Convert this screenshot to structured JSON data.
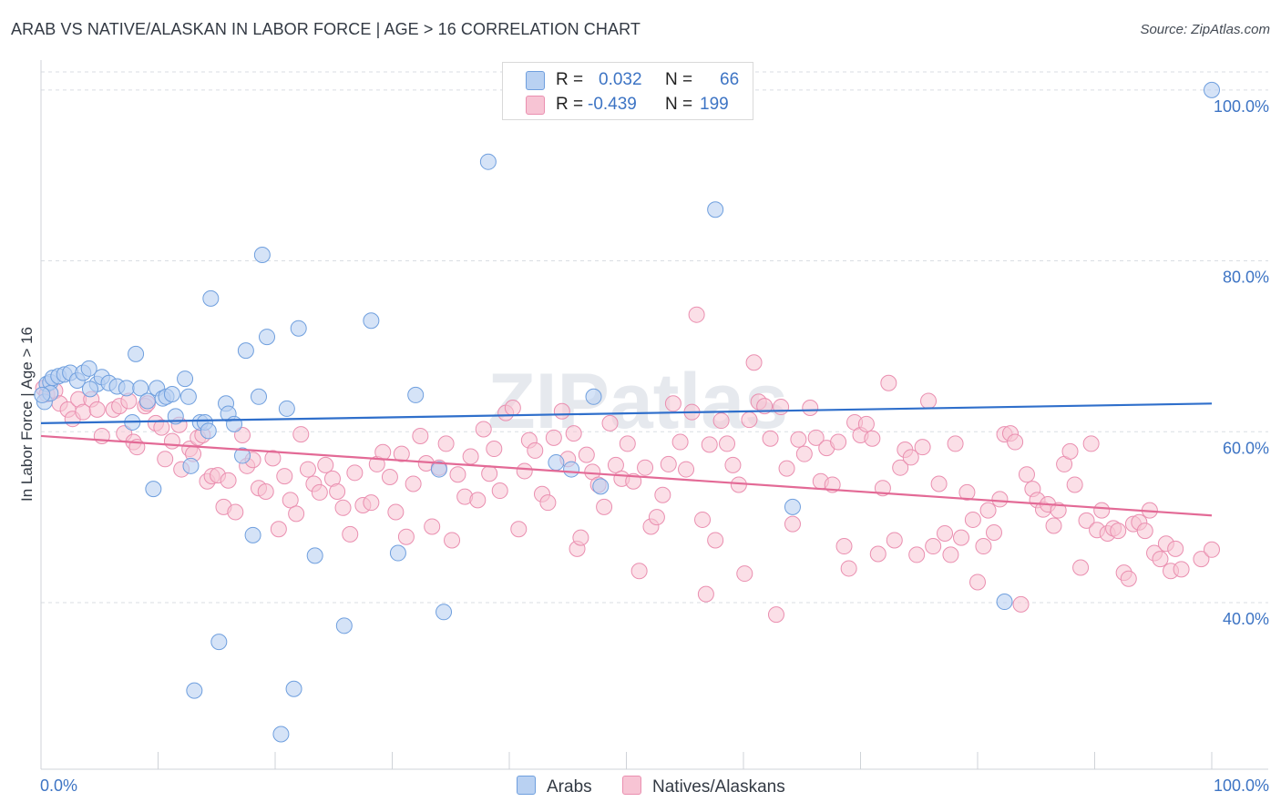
{
  "title": "ARAB VS NATIVE/ALASKAN IN LABOR FORCE | AGE > 16 CORRELATION CHART",
  "source": "Source: ZipAtlas.com",
  "watermark": "ZIPatlas",
  "legend": {
    "rows": [
      {
        "r_label": "R =",
        "r_value": "0.032",
        "n_label": "N =",
        "n_value": "66"
      },
      {
        "r_label": "R =",
        "r_value": "-0.439",
        "n_label": "N =",
        "n_value": "199"
      }
    ]
  },
  "bottom_legend": {
    "arabs": "Arabs",
    "natives": "Natives/Alaskans"
  },
  "colors": {
    "arab_fill": "#b9d1f2",
    "arab_stroke": "#6f9fde",
    "arab_line": "#2f6fcb",
    "native_fill": "#f7c4d4",
    "native_stroke": "#ea8fb0",
    "native_line": "#e36a96",
    "grid": "#d9dde3",
    "tick_label": "#3d74c4"
  },
  "chart_data": {
    "type": "scatter",
    "title": "ARAB VS NATIVE/ALASKAN IN LABOR FORCE | AGE > 16 CORRELATION CHART",
    "xlabel": "",
    "ylabel": "In Labor Force | Age > 16",
    "xlim": [
      0,
      100
    ],
    "ylim": [
      20.5,
      103.5
    ],
    "x_tick_labels": [
      "0.0%",
      "100.0%"
    ],
    "y_ticks": [
      40,
      60,
      80,
      100
    ],
    "y_tick_labels": [
      "40.0%",
      "60.0%",
      "80.0%",
      "100.0%"
    ],
    "series": [
      {
        "name": "Arabs",
        "r": 0.032,
        "n": 66,
        "trend": {
          "x": [
            0,
            100
          ],
          "y": [
            61.0,
            63.3
          ]
        },
        "points": [
          [
            0.3,
            63.5
          ],
          [
            0.5,
            65.6
          ],
          [
            0.8,
            65.8
          ],
          [
            1.0,
            66.3
          ],
          [
            1.5,
            66.5
          ],
          [
            2.0,
            66.7
          ],
          [
            2.5,
            66.9
          ],
          [
            3.1,
            66.0
          ],
          [
            3.6,
            66.9
          ],
          [
            4.1,
            67.4
          ],
          [
            4.8,
            65.6
          ],
          [
            5.2,
            66.4
          ],
          [
            5.8,
            65.7
          ],
          [
            6.5,
            65.3
          ],
          [
            7.3,
            65.1
          ],
          [
            7.8,
            61.1
          ],
          [
            8.1,
            69.1
          ],
          [
            8.5,
            65.1
          ],
          [
            9.1,
            63.6
          ],
          [
            9.6,
            53.3
          ],
          [
            9.9,
            65.1
          ],
          [
            10.4,
            63.9
          ],
          [
            10.7,
            64.1
          ],
          [
            11.2,
            64.4
          ],
          [
            11.5,
            61.8
          ],
          [
            12.3,
            66.2
          ],
          [
            12.6,
            64.1
          ],
          [
            12.8,
            56.0
          ],
          [
            13.1,
            29.7
          ],
          [
            13.6,
            61.1
          ],
          [
            14.0,
            61.1
          ],
          [
            14.3,
            60.1
          ],
          [
            14.5,
            75.6
          ],
          [
            15.2,
            35.4
          ],
          [
            15.8,
            63.3
          ],
          [
            16.0,
            62.1
          ],
          [
            16.5,
            60.9
          ],
          [
            17.2,
            57.2
          ],
          [
            17.5,
            69.5
          ],
          [
            18.1,
            47.9
          ],
          [
            18.6,
            64.1
          ],
          [
            18.9,
            80.7
          ],
          [
            19.3,
            71.1
          ],
          [
            20.5,
            24.6
          ],
          [
            21.0,
            62.7
          ],
          [
            21.6,
            29.9
          ],
          [
            22.0,
            72.1
          ],
          [
            23.4,
            45.5
          ],
          [
            25.9,
            37.3
          ],
          [
            28.2,
            73.0
          ],
          [
            30.5,
            45.8
          ],
          [
            32.0,
            64.3
          ],
          [
            34.0,
            55.6
          ],
          [
            34.4,
            38.9
          ],
          [
            38.2,
            91.6
          ],
          [
            44.0,
            56.4
          ],
          [
            45.3,
            55.6
          ],
          [
            47.2,
            64.1
          ],
          [
            47.8,
            53.6
          ],
          [
            57.6,
            86.0
          ],
          [
            64.2,
            51.2
          ],
          [
            82.3,
            40.1
          ],
          [
            100.0,
            100.0
          ],
          [
            0.8,
            64.5
          ],
          [
            4.2,
            65.0
          ],
          [
            0.1,
            64.3
          ]
        ]
      },
      {
        "name": "Natives/Alaskans",
        "r": -0.439,
        "n": 199,
        "trend": {
          "x": [
            0,
            100
          ],
          "y": [
            59.5,
            50.2
          ]
        },
        "points": [
          [
            0.2,
            65.1
          ],
          [
            0.5,
            64.4
          ],
          [
            1.2,
            64.8
          ],
          [
            1.6,
            63.3
          ],
          [
            2.3,
            62.6
          ],
          [
            2.7,
            61.5
          ],
          [
            3.2,
            63.8
          ],
          [
            3.6,
            62.3
          ],
          [
            4.3,
            63.8
          ],
          [
            4.8,
            62.6
          ],
          [
            5.2,
            59.5
          ],
          [
            6.2,
            62.6
          ],
          [
            6.7,
            63.0
          ],
          [
            7.1,
            59.8
          ],
          [
            7.5,
            63.6
          ],
          [
            7.9,
            58.8
          ],
          [
            8.2,
            58.2
          ],
          [
            8.9,
            63.0
          ],
          [
            9.1,
            63.3
          ],
          [
            9.8,
            61.0
          ],
          [
            10.3,
            60.5
          ],
          [
            10.6,
            56.8
          ],
          [
            11.2,
            58.9
          ],
          [
            11.8,
            60.8
          ],
          [
            12.0,
            55.6
          ],
          [
            12.7,
            58.0
          ],
          [
            13.0,
            57.4
          ],
          [
            13.4,
            59.3
          ],
          [
            13.8,
            59.6
          ],
          [
            14.2,
            54.2
          ],
          [
            14.6,
            54.8
          ],
          [
            15.1,
            54.9
          ],
          [
            15.6,
            51.2
          ],
          [
            16.0,
            54.3
          ],
          [
            16.6,
            50.6
          ],
          [
            17.2,
            59.6
          ],
          [
            17.6,
            56.0
          ],
          [
            18.1,
            56.7
          ],
          [
            18.6,
            53.4
          ],
          [
            19.2,
            53.0
          ],
          [
            19.8,
            56.9
          ],
          [
            20.3,
            48.6
          ],
          [
            20.8,
            54.8
          ],
          [
            21.3,
            52.0
          ],
          [
            21.8,
            50.4
          ],
          [
            22.2,
            59.7
          ],
          [
            22.8,
            55.6
          ],
          [
            23.3,
            53.9
          ],
          [
            23.8,
            52.9
          ],
          [
            24.3,
            56.1
          ],
          [
            24.9,
            54.5
          ],
          [
            25.3,
            53.0
          ],
          [
            25.8,
            51.1
          ],
          [
            26.4,
            48.0
          ],
          [
            26.8,
            55.2
          ],
          [
            27.5,
            51.4
          ],
          [
            28.2,
            51.7
          ],
          [
            28.7,
            56.2
          ],
          [
            29.2,
            57.6
          ],
          [
            29.8,
            54.7
          ],
          [
            30.3,
            50.6
          ],
          [
            30.8,
            57.4
          ],
          [
            31.2,
            47.7
          ],
          [
            31.8,
            53.9
          ],
          [
            32.4,
            59.5
          ],
          [
            32.9,
            56.3
          ],
          [
            33.4,
            48.9
          ],
          [
            34.0,
            55.8
          ],
          [
            34.6,
            58.6
          ],
          [
            35.1,
            47.3
          ],
          [
            35.6,
            55.0
          ],
          [
            36.2,
            52.4
          ],
          [
            36.7,
            57.1
          ],
          [
            37.3,
            52.0
          ],
          [
            37.8,
            60.3
          ],
          [
            38.3,
            55.1
          ],
          [
            38.7,
            58.0
          ],
          [
            39.2,
            53.1
          ],
          [
            39.7,
            62.2
          ],
          [
            40.3,
            62.8
          ],
          [
            40.8,
            48.6
          ],
          [
            41.3,
            55.4
          ],
          [
            41.7,
            59.0
          ],
          [
            42.2,
            57.8
          ],
          [
            42.8,
            52.7
          ],
          [
            43.3,
            51.7
          ],
          [
            43.8,
            59.3
          ],
          [
            44.5,
            62.4
          ],
          [
            45.0,
            56.8
          ],
          [
            45.5,
            59.8
          ],
          [
            45.8,
            46.3
          ],
          [
            46.1,
            47.6
          ],
          [
            46.6,
            57.3
          ],
          [
            47.1,
            55.3
          ],
          [
            47.6,
            53.8
          ],
          [
            48.1,
            51.2
          ],
          [
            48.6,
            61.0
          ],
          [
            49.1,
            56.1
          ],
          [
            49.6,
            54.5
          ],
          [
            50.1,
            58.6
          ],
          [
            50.6,
            54.2
          ],
          [
            51.1,
            43.7
          ],
          [
            51.6,
            55.8
          ],
          [
            52.1,
            48.9
          ],
          [
            52.6,
            50.0
          ],
          [
            53.1,
            52.6
          ],
          [
            53.6,
            56.2
          ],
          [
            54.0,
            63.3
          ],
          [
            54.6,
            58.8
          ],
          [
            55.1,
            55.6
          ],
          [
            55.6,
            62.3
          ],
          [
            56.0,
            73.7
          ],
          [
            56.5,
            49.7
          ],
          [
            56.8,
            41.0
          ],
          [
            57.1,
            58.5
          ],
          [
            57.6,
            47.3
          ],
          [
            58.1,
            61.3
          ],
          [
            58.6,
            58.6
          ],
          [
            59.1,
            56.1
          ],
          [
            59.6,
            53.8
          ],
          [
            60.1,
            43.4
          ],
          [
            60.5,
            61.4
          ],
          [
            60.9,
            68.1
          ],
          [
            61.3,
            63.5
          ],
          [
            61.8,
            63.0
          ],
          [
            62.3,
            59.2
          ],
          [
            62.8,
            38.6
          ],
          [
            63.2,
            62.9
          ],
          [
            63.7,
            55.7
          ],
          [
            64.2,
            49.2
          ],
          [
            64.7,
            59.1
          ],
          [
            65.2,
            57.4
          ],
          [
            65.7,
            62.8
          ],
          [
            66.2,
            59.3
          ],
          [
            66.6,
            54.2
          ],
          [
            67.1,
            58.1
          ],
          [
            67.6,
            53.8
          ],
          [
            68.1,
            58.8
          ],
          [
            68.6,
            46.6
          ],
          [
            69.0,
            44.0
          ],
          [
            69.5,
            61.1
          ],
          [
            70.0,
            59.6
          ],
          [
            70.5,
            60.9
          ],
          [
            71.0,
            59.2
          ],
          [
            71.5,
            45.7
          ],
          [
            71.9,
            53.4
          ],
          [
            72.4,
            65.7
          ],
          [
            72.9,
            47.3
          ],
          [
            73.4,
            55.8
          ],
          [
            73.8,
            57.9
          ],
          [
            74.3,
            57.0
          ],
          [
            74.8,
            45.6
          ],
          [
            75.3,
            58.2
          ],
          [
            75.8,
            63.6
          ],
          [
            76.2,
            46.6
          ],
          [
            76.7,
            53.9
          ],
          [
            77.2,
            48.1
          ],
          [
            77.7,
            45.6
          ],
          [
            78.1,
            58.6
          ],
          [
            78.6,
            47.6
          ],
          [
            79.1,
            52.9
          ],
          [
            79.6,
            49.7
          ],
          [
            80.0,
            42.4
          ],
          [
            80.5,
            46.6
          ],
          [
            80.9,
            50.8
          ],
          [
            81.4,
            48.2
          ],
          [
            81.9,
            52.1
          ],
          [
            82.3,
            59.7
          ],
          [
            82.8,
            59.8
          ],
          [
            83.2,
            58.8
          ],
          [
            83.7,
            39.8
          ],
          [
            84.2,
            55.0
          ],
          [
            84.7,
            53.3
          ],
          [
            85.1,
            52.0
          ],
          [
            85.6,
            50.9
          ],
          [
            86.0,
            51.5
          ],
          [
            86.5,
            49.0
          ],
          [
            86.9,
            50.8
          ],
          [
            87.4,
            56.2
          ],
          [
            87.9,
            57.7
          ],
          [
            88.3,
            53.8
          ],
          [
            88.8,
            44.1
          ],
          [
            89.3,
            49.6
          ],
          [
            89.7,
            58.6
          ],
          [
            90.2,
            48.5
          ],
          [
            90.6,
            50.8
          ],
          [
            91.1,
            48.1
          ],
          [
            91.6,
            48.7
          ],
          [
            92.0,
            48.4
          ],
          [
            92.5,
            43.5
          ],
          [
            92.9,
            42.8
          ],
          [
            93.3,
            49.2
          ],
          [
            93.8,
            49.4
          ],
          [
            94.3,
            48.4
          ],
          [
            94.7,
            50.8
          ],
          [
            95.1,
            45.8
          ],
          [
            95.6,
            45.1
          ],
          [
            96.1,
            46.9
          ],
          [
            96.5,
            43.7
          ],
          [
            96.9,
            46.3
          ],
          [
            97.4,
            43.9
          ],
          [
            99.1,
            45.1
          ],
          [
            100.0,
            46.2
          ]
        ]
      }
    ]
  }
}
